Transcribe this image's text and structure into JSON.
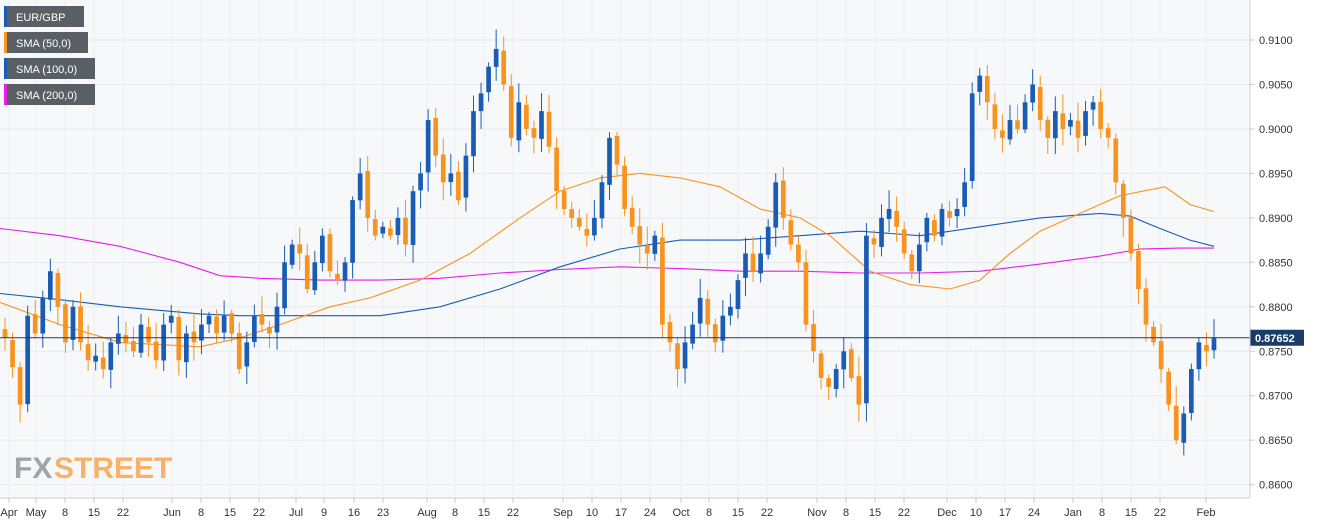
{
  "chart_data": {
    "type": "candlestick",
    "title": "",
    "ylim": [
      0.8585,
      0.9145
    ],
    "y_ticks": [
      "0.9100",
      "0.9050",
      "0.9000",
      "0.8950",
      "0.8900",
      "0.8850",
      "0.8800",
      "0.8750",
      "0.8700",
      "0.8650",
      "0.8600"
    ],
    "x_ticks": [
      "Apr",
      "May",
      "8",
      "15",
      "22",
      "Jun",
      "8",
      "15",
      "22",
      "Jul",
      "9",
      "16",
      "23",
      "Aug",
      "8",
      "15",
      "22",
      "Sep",
      "10",
      "17",
      "24",
      "Oct",
      "8",
      "15",
      "22",
      "Nov",
      "8",
      "15",
      "22",
      "Dec",
      "10",
      "17",
      "24",
      "Jan",
      "8",
      "15",
      "22",
      "Feb"
    ],
    "legend": [
      {
        "name": "EUR/GBP",
        "color": "#1a5cb3"
      },
      {
        "name": "SMA (50,0)",
        "color": "#f7931e"
      },
      {
        "name": "SMA (100,0)",
        "color": "#1a5cb3"
      },
      {
        "name": "SMA (200,0)",
        "color": "#e61ee6"
      }
    ],
    "last_price": "0.87652",
    "last_value": 0.87652,
    "colors": {
      "up": "#1a5cb3",
      "down": "#f7931e",
      "sma50": "#f7931e",
      "sma100": "#1a5cb3",
      "sma200": "#e61ee6",
      "price_line": "#1a3c66",
      "price_bg": "#1a3c66"
    },
    "closes": [
      0.8765,
      0.8732,
      0.869,
      0.879,
      0.877,
      0.881,
      0.884,
      0.88,
      0.876,
      0.88,
      0.876,
      0.874,
      0.8745,
      0.873,
      0.876,
      0.877,
      0.876,
      0.875,
      0.878,
      0.876,
      0.874,
      0.878,
      0.879,
      0.874,
      0.877,
      0.876,
      0.878,
      0.879,
      0.877,
      0.879,
      0.877,
      0.873,
      0.876,
      0.879,
      0.878,
      0.877,
      0.88,
      0.885,
      0.887,
      0.886,
      0.882,
      0.885,
      0.888,
      0.884,
      0.883,
      0.885,
      0.892,
      0.895,
      0.89,
      0.888,
      0.889,
      0.888,
      0.89,
      0.887,
      0.893,
      0.895,
      0.901,
      0.897,
      0.894,
      0.895,
      0.892,
      0.897,
      0.902,
      0.904,
      0.907,
      0.909,
      0.905,
      0.899,
      0.903,
      0.9,
      0.899,
      0.902,
      0.898,
      0.893,
      0.891,
      0.89,
      0.889,
      0.888,
      0.89,
      0.894,
      0.899,
      0.896,
      0.891,
      0.889,
      0.887,
      0.886,
      0.888,
      0.878,
      0.876,
      0.873,
      0.876,
      0.878,
      0.881,
      0.878,
      0.876,
      0.879,
      0.88,
      0.883,
      0.886,
      0.884,
      0.886,
      0.889,
      0.894,
      0.89,
      0.887,
      0.885,
      0.878,
      0.875,
      0.872,
      0.871,
      0.873,
      0.875,
      0.872,
      0.869,
      0.888,
      0.887,
      0.89,
      0.891,
      0.889,
      0.886,
      0.884,
      0.887,
      0.89,
      0.888,
      0.891,
      0.89,
      0.891,
      0.894,
      0.904,
      0.906,
      0.903,
      0.9,
      0.899,
      0.901,
      0.9,
      0.903,
      0.905,
      0.901,
      0.899,
      0.902,
      0.9,
      0.901,
      0.899,
      0.902,
      0.903,
      0.9,
      0.899,
      0.894,
      0.89,
      0.886,
      0.882,
      0.878,
      0.876,
      0.873,
      0.869,
      0.865,
      0.868,
      0.873,
      0.876,
      0.875,
      0.8765
    ],
    "sma50": [
      [
        0,
        0.8805
      ],
      [
        60,
        0.878
      ],
      [
        120,
        0.876
      ],
      [
        200,
        0.8755
      ],
      [
        240,
        0.8765
      ],
      [
        280,
        0.878
      ],
      [
        330,
        0.88
      ],
      [
        370,
        0.881
      ],
      [
        420,
        0.883
      ],
      [
        470,
        0.886
      ],
      [
        520,
        0.89
      ],
      [
        560,
        0.893
      ],
      [
        600,
        0.8945
      ],
      [
        640,
        0.895
      ],
      [
        680,
        0.8945
      ],
      [
        720,
        0.8935
      ],
      [
        760,
        0.891
      ],
      [
        800,
        0.89
      ],
      [
        830,
        0.888
      ],
      [
        870,
        0.884
      ],
      [
        910,
        0.8825
      ],
      [
        950,
        0.882
      ],
      [
        980,
        0.883
      ],
      [
        1010,
        0.886
      ],
      [
        1040,
        0.8885
      ],
      [
        1080,
        0.8905
      ],
      [
        1120,
        0.8925
      ],
      [
        1165,
        0.8935
      ],
      [
        1190,
        0.8915
      ],
      [
        1214,
        0.8907
      ]
    ],
    "sma100": [
      [
        0,
        0.8815
      ],
      [
        60,
        0.8808
      ],
      [
        120,
        0.88
      ],
      [
        200,
        0.8792
      ],
      [
        240,
        0.879
      ],
      [
        280,
        0.879
      ],
      [
        330,
        0.879
      ],
      [
        380,
        0.879
      ],
      [
        440,
        0.88
      ],
      [
        500,
        0.882
      ],
      [
        560,
        0.8845
      ],
      [
        620,
        0.8865
      ],
      [
        680,
        0.8875
      ],
      [
        740,
        0.8875
      ],
      [
        800,
        0.888
      ],
      [
        860,
        0.8885
      ],
      [
        920,
        0.888
      ],
      [
        980,
        0.889
      ],
      [
        1040,
        0.89
      ],
      [
        1100,
        0.8905
      ],
      [
        1130,
        0.8902
      ],
      [
        1160,
        0.8888
      ],
      [
        1190,
        0.8875
      ],
      [
        1214,
        0.8868
      ]
    ],
    "sma200": [
      [
        0,
        0.8888
      ],
      [
        60,
        0.888
      ],
      [
        120,
        0.8868
      ],
      [
        180,
        0.885
      ],
      [
        220,
        0.8835
      ],
      [
        260,
        0.8832
      ],
      [
        320,
        0.883
      ],
      [
        380,
        0.883
      ],
      [
        440,
        0.8832
      ],
      [
        500,
        0.8838
      ],
      [
        560,
        0.8842
      ],
      [
        620,
        0.8845
      ],
      [
        680,
        0.8843
      ],
      [
        740,
        0.884
      ],
      [
        800,
        0.884
      ],
      [
        860,
        0.8838
      ],
      [
        920,
        0.8838
      ],
      [
        980,
        0.884
      ],
      [
        1040,
        0.8848
      ],
      [
        1100,
        0.8857
      ],
      [
        1140,
        0.8865
      ],
      [
        1180,
        0.8866
      ],
      [
        1214,
        0.8866
      ]
    ]
  }
}
